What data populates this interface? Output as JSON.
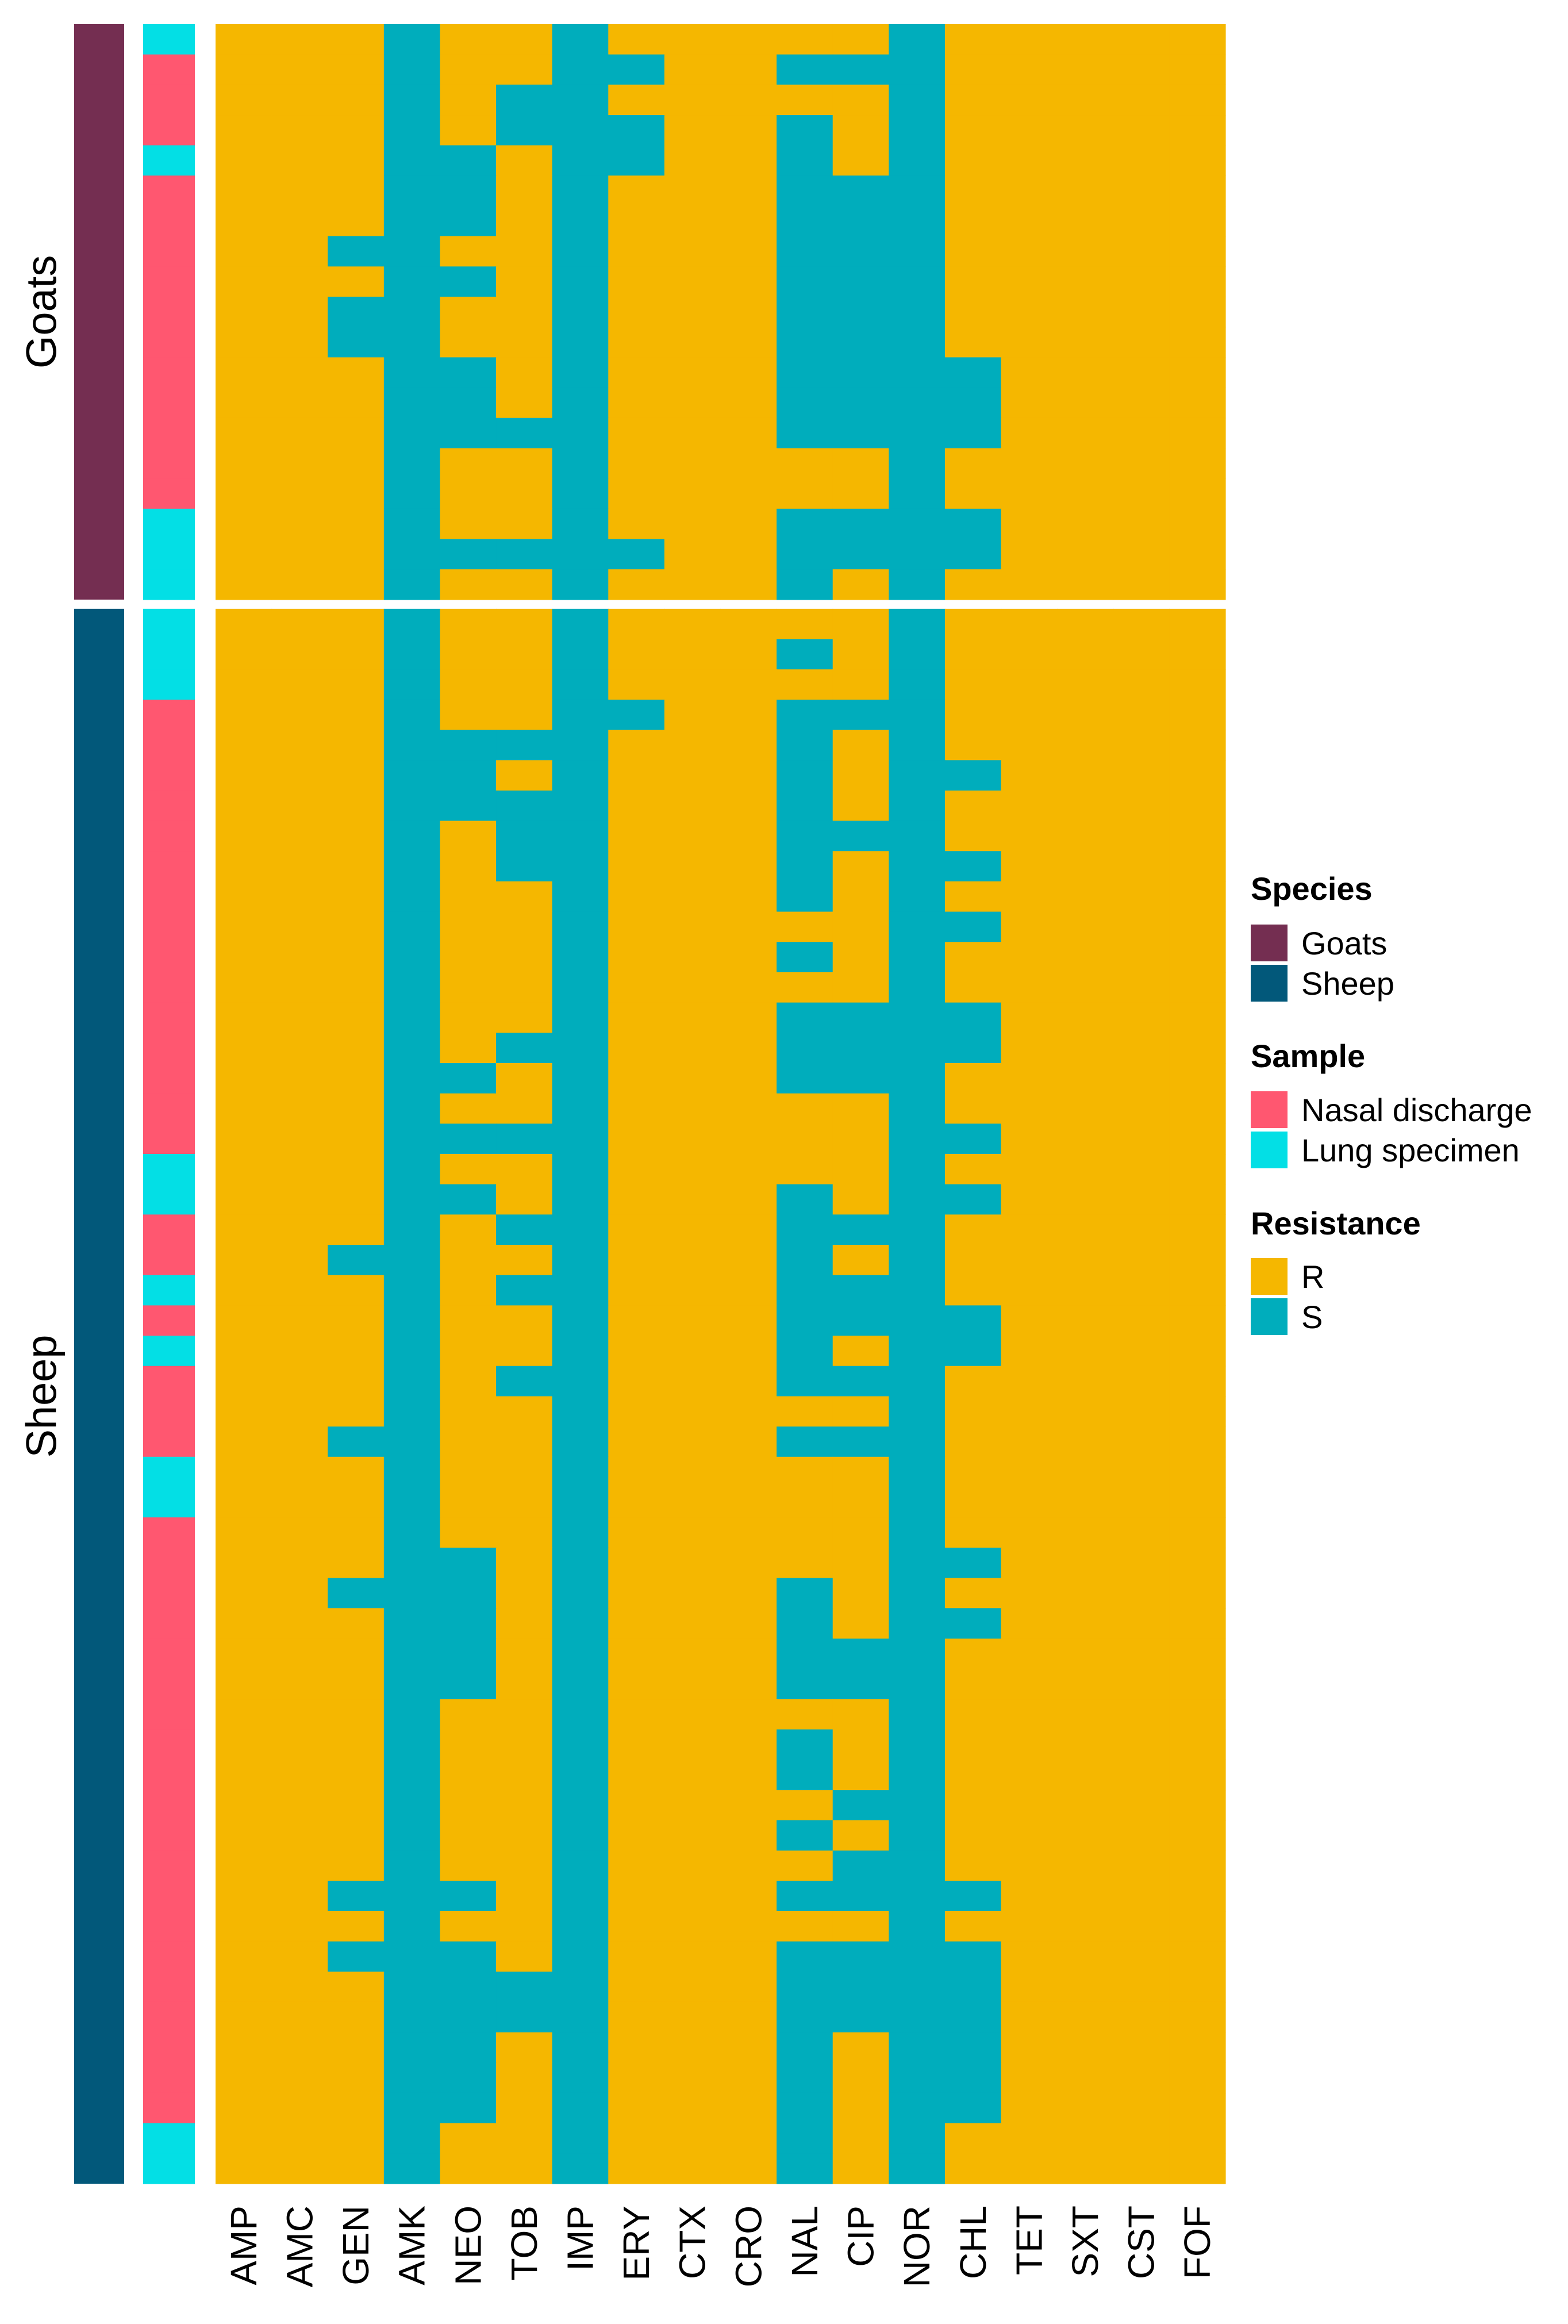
{
  "colors": {
    "species": {
      "Goats": "#742e51",
      "Sheep": "#02587a"
    },
    "sample": {
      "Nasal discharge": "#ff5770",
      "Lung specimen": "#03dfe5"
    },
    "resistance": {
      "R": "#f5b700",
      "S": "#00adbc"
    }
  },
  "chart_data": {
    "type": "heatmap",
    "columns": [
      "AMP",
      "AMC",
      "GEN",
      "AMK",
      "NEO",
      "TOB",
      "IMP",
      "ERY",
      "CTX",
      "CRO",
      "NAL",
      "CIP",
      "NOR",
      "CHL",
      "TET",
      "SXT",
      "CST",
      "FOF"
    ],
    "row_groups": [
      {
        "species": "Goats",
        "rows": [
          {
            "sample": "Lung specimen",
            "values": "RRRSRRSRRRRRSRRRRR"
          },
          {
            "sample": "Nasal discharge",
            "values": "RRRSRRSSRRSSSRRRRR"
          },
          {
            "sample": "Nasal discharge",
            "values": "RRRSRSSRRRRRSRRRRR"
          },
          {
            "sample": "Nasal discharge",
            "values": "RRRSRSSSRRSRSRRRRR"
          },
          {
            "sample": "Lung specimen",
            "values": "RRRSSRSSRRSRSRRRRR"
          },
          {
            "sample": "Nasal discharge",
            "values": "RRRSSRSRRRSSSRRRRR"
          },
          {
            "sample": "Nasal discharge",
            "values": "RRRSSRSRRRSSSRRRRR"
          },
          {
            "sample": "Nasal discharge",
            "values": "RRSSRRSRRRSSSRRRRR"
          },
          {
            "sample": "Nasal discharge",
            "values": "RRRSSRSRRRSSSRRRRR"
          },
          {
            "sample": "Nasal discharge",
            "values": "RRSSRRSRRRSSSRRRRR"
          },
          {
            "sample": "Nasal discharge",
            "values": "RRSSRRSRRRSSSRRRRR"
          },
          {
            "sample": "Nasal discharge",
            "values": "RRRSSRSRRRSSSSRRRR"
          },
          {
            "sample": "Nasal discharge",
            "values": "RRRSSRSRRRSSSSRRRR"
          },
          {
            "sample": "Nasal discharge",
            "values": "RRRSSSSRRRSSSSRRRR"
          },
          {
            "sample": "Nasal discharge",
            "values": "RRRSRRSRRRRRSRRRRR"
          },
          {
            "sample": "Nasal discharge",
            "values": "RRRSRRSRRRRRSRRRRR"
          },
          {
            "sample": "Lung specimen",
            "values": "RRRSRRSRRRSSSSRRRR"
          },
          {
            "sample": "Lung specimen",
            "values": "RRRSSSSSRRSSSSRRRR"
          },
          {
            "sample": "Lung specimen",
            "values": "RRRSRRSRRRSRSRRRRR"
          }
        ]
      },
      {
        "species": "Sheep",
        "rows": [
          {
            "sample": "Lung specimen",
            "values": "RRRSRRSRRRRRSRRRRR"
          },
          {
            "sample": "Lung specimen",
            "values": "RRRSRRSRRRSRSRRRRR"
          },
          {
            "sample": "Lung specimen",
            "values": "RRRSRRSRRRRRSRRRRR"
          },
          {
            "sample": "Nasal discharge",
            "values": "RRRSRRSSRRSSSRRRRR"
          },
          {
            "sample": "Nasal discharge",
            "values": "RRRSSSSRRRSRSRRRRR"
          },
          {
            "sample": "Nasal discharge",
            "values": "RRRSSRSRRRSRSSRRRR"
          },
          {
            "sample": "Nasal discharge",
            "values": "RRRSSSSRRRSRSRRRRR"
          },
          {
            "sample": "Nasal discharge",
            "values": "RRRSRSSRRRSSSRRRRR"
          },
          {
            "sample": "Nasal discharge",
            "values": "RRRSRSSRRRSRSSRRRR"
          },
          {
            "sample": "Nasal discharge",
            "values": "RRRSRRSRRRSRSRRRRR"
          },
          {
            "sample": "Nasal discharge",
            "values": "RRRSRRSRRRRRSSRRRR"
          },
          {
            "sample": "Nasal discharge",
            "values": "RRRSRRSRRRSRSRRRRR"
          },
          {
            "sample": "Nasal discharge",
            "values": "RRRSRRSRRRRRSRRRRR"
          },
          {
            "sample": "Nasal discharge",
            "values": "RRRSRRSRRRSSSSRRRR"
          },
          {
            "sample": "Nasal discharge",
            "values": "RRRSRSSRRRSSSSRRRR"
          },
          {
            "sample": "Nasal discharge",
            "values": "RRRSSRSRRRSSSRRRRR"
          },
          {
            "sample": "Nasal discharge",
            "values": "RRRSRRSRRRRRSRRRRR"
          },
          {
            "sample": "Nasal discharge",
            "values": "RRRSSSSRRRRRSSRRRR"
          },
          {
            "sample": "Lung specimen",
            "values": "RRRSRRSRRRRRSRRRRR"
          },
          {
            "sample": "Lung specimen",
            "values": "RRRSSRSRRRSRSSRRRR"
          },
          {
            "sample": "Nasal discharge",
            "values": "RRRSRSSRRRSSSRRRRR"
          },
          {
            "sample": "Nasal discharge",
            "values": "RRSSRRSRRRSRSRRRRR"
          },
          {
            "sample": "Lung specimen",
            "values": "RRRSRSSRRRSSSRRRRR"
          },
          {
            "sample": "Nasal discharge",
            "values": "RRRSRRSRRRSSSSRRRR"
          },
          {
            "sample": "Lung specimen",
            "values": "RRRSRRSRRRSRSSRRRR"
          },
          {
            "sample": "Nasal discharge",
            "values": "RRRSRSSRRRSSSRRRRR"
          },
          {
            "sample": "Nasal discharge",
            "values": "RRRSRRSRRRRRSRRRRR"
          },
          {
            "sample": "Nasal discharge",
            "values": "RRSSRRSRRRSSSRRRRR"
          },
          {
            "sample": "Lung specimen",
            "values": "RRRSRRSRRRRRSRRRRR"
          },
          {
            "sample": "Lung specimen",
            "values": "RRRSRRSRRRRRSRRRRR"
          },
          {
            "sample": "Nasal discharge",
            "values": "RRRSRRSRRRRRSRRRRR"
          },
          {
            "sample": "Nasal discharge",
            "values": "RRRSSRSRRRRRSSRRRR"
          },
          {
            "sample": "Nasal discharge",
            "values": "RRSSSRSRRRSRSRRRRR"
          },
          {
            "sample": "Nasal discharge",
            "values": "RRRSSRSRRRSRSSRRRR"
          },
          {
            "sample": "Nasal discharge",
            "values": "RRRSSRSRRRSSSRRRRR"
          },
          {
            "sample": "Nasal discharge",
            "values": "RRRSSRSRRRSSSRRRRR"
          },
          {
            "sample": "Nasal discharge",
            "values": "RRRSRRSRRRRRSRRRRR"
          },
          {
            "sample": "Nasal discharge",
            "values": "RRRSRRSRRRSRSRRRRR"
          },
          {
            "sample": "Nasal discharge",
            "values": "RRRSRRSRRRSRSRRRRR"
          },
          {
            "sample": "Nasal discharge",
            "values": "RRRSRRSRRRRSSRRRRR"
          },
          {
            "sample": "Nasal discharge",
            "values": "RRRSRRSRRRSRSRRRRR"
          },
          {
            "sample": "Nasal discharge",
            "values": "RRRSRRSRRRRSSRRRRR"
          },
          {
            "sample": "Nasal discharge",
            "values": "RRSSSRSRRRSSSSRRRR"
          },
          {
            "sample": "Nasal discharge",
            "values": "RRRSRRSRRRRRSRRRRR"
          },
          {
            "sample": "Nasal discharge",
            "values": "RRSSSRSRRRSSSSRRRR"
          },
          {
            "sample": "Nasal discharge",
            "values": "RRRSSSSRRRSSSSRRRR"
          },
          {
            "sample": "Nasal discharge",
            "values": "RRRSSSSRRRSSSSRRRR"
          },
          {
            "sample": "Nasal discharge",
            "values": "RRRSSRSRRRSRSSRRRR"
          },
          {
            "sample": "Nasal discharge",
            "values": "RRRSSRSRRRSRSSRRRR"
          },
          {
            "sample": "Nasal discharge",
            "values": "RRRSSRSRRRSRSSRRRR"
          },
          {
            "sample": "Lung specimen",
            "values": "RRRSRRSRRRSRSRRRRR"
          },
          {
            "sample": "Lung specimen",
            "values": "RRRSRRSRRRSRSRRRRR"
          }
        ]
      }
    ],
    "row_labels": [
      "Goats",
      "Sheep"
    ],
    "xlabel": "",
    "ylabel": ""
  },
  "legend": {
    "species": {
      "title": "Species",
      "items": [
        "Goats",
        "Sheep"
      ]
    },
    "sample": {
      "title": "Sample",
      "items": [
        "Nasal discharge",
        "Lung specimen"
      ]
    },
    "resistance": {
      "title": "Resistance",
      "items": [
        "R",
        "S"
      ]
    }
  }
}
